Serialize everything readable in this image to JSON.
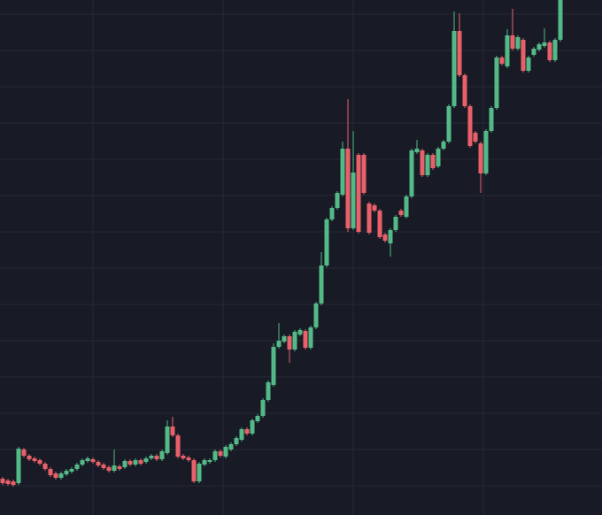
{
  "chart_data": {
    "type": "candlestick",
    "up_color": "#53b987",
    "down_color": "#e8606a",
    "grid_color": "#262a36",
    "ylim": [
      0,
      582
    ],
    "yticks": [
      33,
      74,
      115,
      156,
      197,
      238,
      279,
      320,
      361,
      402,
      443,
      484,
      525,
      566
    ],
    "grid": true,
    "open": [
      41,
      39,
      38,
      36,
      74,
      67,
      64,
      62,
      58,
      52,
      47,
      42,
      46,
      49,
      52,
      57,
      61,
      63,
      60,
      57,
      54,
      50,
      55,
      54,
      61,
      57,
      62,
      60,
      64,
      67,
      63,
      70,
      100,
      90,
      67,
      65,
      62,
      38,
      57,
      60,
      62,
      72,
      66,
      74,
      80,
      85,
      97,
      92,
      106,
      112,
      130,
      147,
      190,
      196,
      202,
      187,
      204,
      208,
      189,
      212,
      239,
      282,
      334,
      347,
      362,
      414,
      324,
      407,
      407,
      352,
      350,
      344,
      317,
      307,
      322,
      344,
      337,
      360,
      410,
      412,
      384,
      407,
      394,
      414,
      422,
      462,
      547,
      497,
      462,
      432,
      420,
      386,
      434,
      460,
      517,
      507,
      542,
      527,
      537,
      502,
      520,
      526,
      530,
      534,
      514,
      537
    ],
    "high": [
      43,
      41,
      40,
      77,
      76,
      69,
      66,
      64,
      60,
      54,
      49,
      49,
      52,
      54,
      59,
      64,
      66,
      65,
      62,
      59,
      56,
      74,
      57,
      63,
      63,
      64,
      64,
      66,
      69,
      69,
      74,
      107,
      111,
      92,
      69,
      67,
      64,
      60,
      64,
      64,
      74,
      74,
      79,
      82,
      89,
      99,
      99,
      109,
      114,
      132,
      152,
      194,
      217,
      204,
      204,
      209,
      211,
      210,
      214,
      241,
      297,
      336,
      349,
      366,
      422,
      470,
      434,
      409,
      409,
      354,
      352,
      346,
      319,
      324,
      339,
      346,
      362,
      414,
      424,
      414,
      409,
      409,
      416,
      424,
      464,
      569,
      567,
      499,
      464,
      434,
      422,
      436,
      462,
      519,
      519,
      549,
      572,
      542,
      539,
      519,
      529,
      534,
      550,
      536,
      539,
      582
    ],
    "low": [
      34,
      33,
      32,
      34,
      65,
      61,
      59,
      56,
      50,
      43,
      40,
      40,
      44,
      47,
      50,
      55,
      59,
      58,
      54,
      51,
      48,
      48,
      50,
      52,
      55,
      55,
      56,
      58,
      62,
      61,
      61,
      68,
      88,
      64,
      62,
      60,
      36,
      36,
      55,
      58,
      60,
      65,
      64,
      72,
      78,
      83,
      90,
      90,
      104,
      110,
      128,
      145,
      188,
      194,
      172,
      185,
      202,
      187,
      187,
      210,
      237,
      280,
      332,
      345,
      360,
      320,
      322,
      318,
      362,
      317,
      342,
      312,
      308,
      292,
      320,
      337,
      335,
      358,
      408,
      382,
      382,
      390,
      392,
      412,
      420,
      460,
      495,
      460,
      415,
      420,
      364,
      384,
      432,
      458,
      508,
      505,
      525,
      525,
      500,
      500,
      518,
      524,
      528,
      512,
      512,
      535
    ],
    "close": [
      36,
      35,
      34,
      75,
      67,
      63,
      61,
      58,
      52,
      45,
      42,
      47,
      50,
      52,
      57,
      62,
      64,
      60,
      56,
      53,
      50,
      56,
      52,
      61,
      57,
      62,
      58,
      64,
      67,
      63,
      72,
      100,
      90,
      66,
      64,
      62,
      38,
      58,
      62,
      62,
      72,
      67,
      77,
      80,
      87,
      97,
      92,
      107,
      112,
      130,
      150,
      190,
      197,
      202,
      187,
      207,
      209,
      189,
      212,
      239,
      282,
      334,
      347,
      364,
      414,
      324,
      387,
      320,
      364,
      319,
      344,
      314,
      310,
      322,
      337,
      339,
      360,
      412,
      414,
      384,
      407,
      392,
      414,
      422,
      462,
      547,
      497,
      462,
      417,
      422,
      386,
      434,
      460,
      517,
      510,
      542,
      527,
      540,
      502,
      517,
      527,
      532,
      534,
      514,
      537,
      582
    ]
  }
}
